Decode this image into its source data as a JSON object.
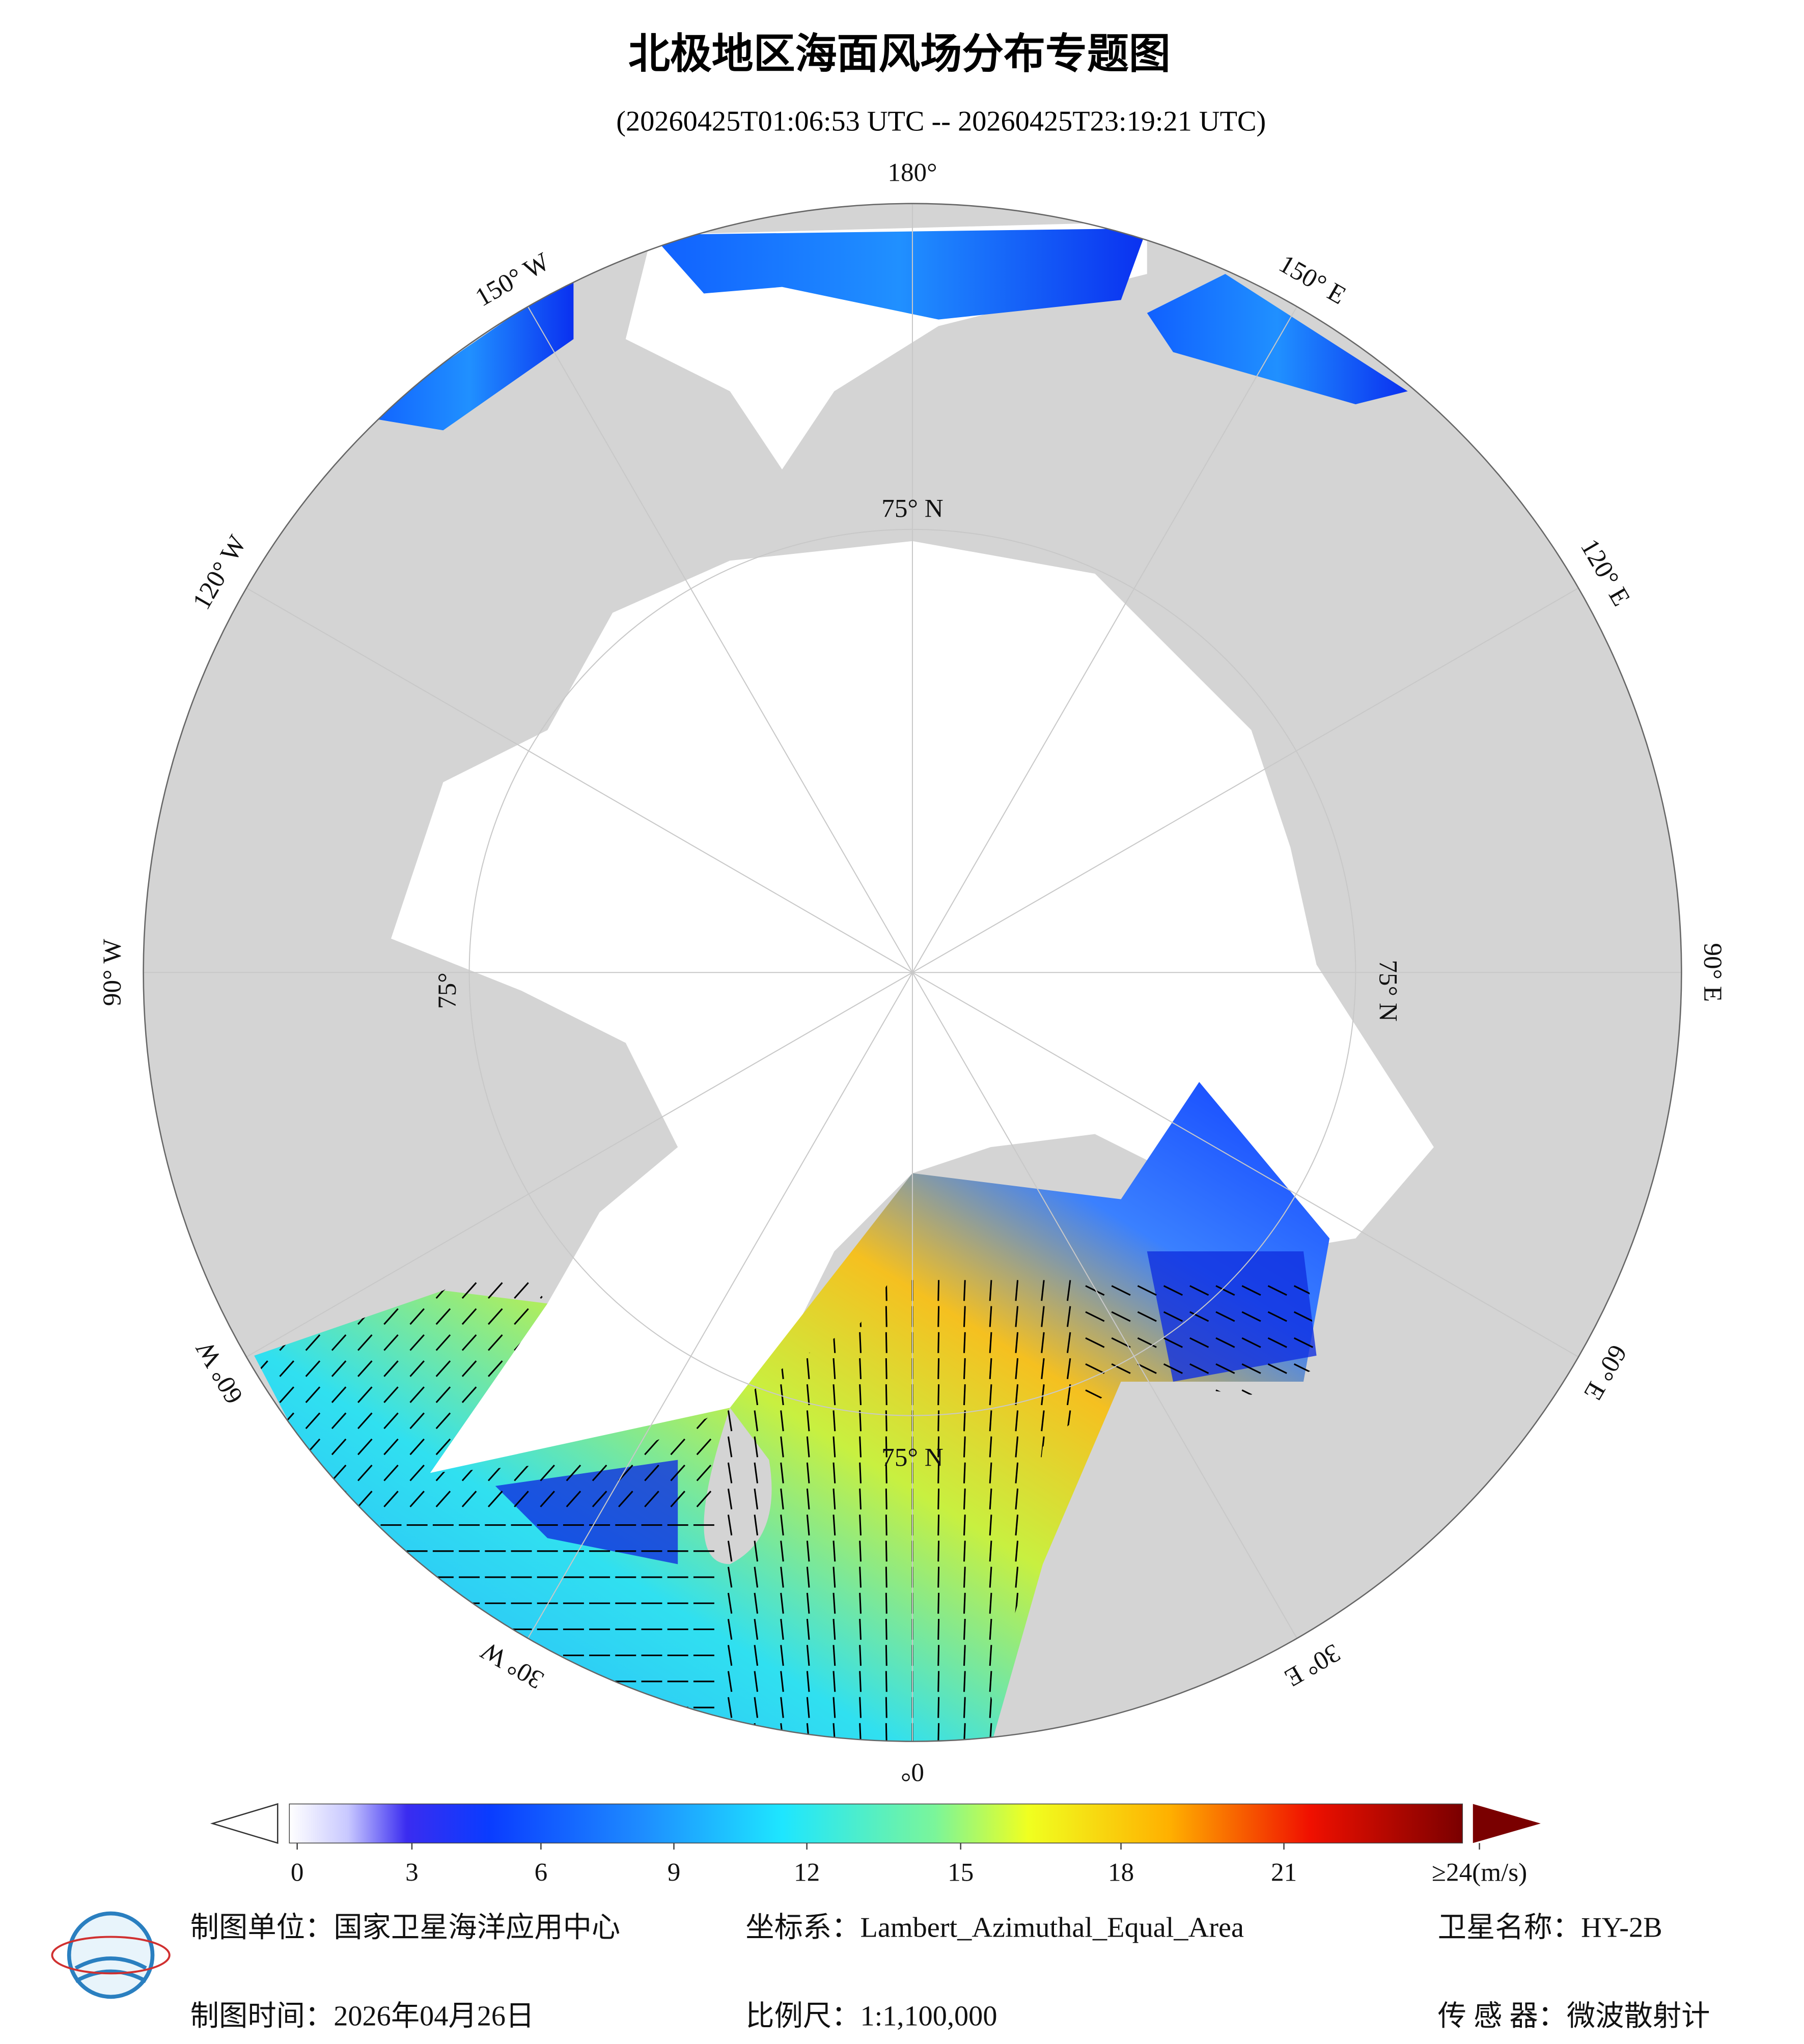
{
  "header": {
    "title": "北极地区海面风场分布专题图",
    "subtitle": "(20260425T01:06:53 UTC -- 20260425T23:19:21 UTC)"
  },
  "map": {
    "longitude_labels": [
      "180°",
      "150° E",
      "120° E",
      "90° E",
      "60° E",
      "30° E",
      "0°",
      "30° W",
      "60° W",
      "90° W",
      "120° W",
      "150° W"
    ],
    "latitude_labels": [
      "75° N",
      "75° N",
      "75°",
      "75° N"
    ]
  },
  "colorbar": {
    "ticks": [
      0,
      3,
      6,
      9,
      12,
      15,
      18,
      21,
      {
        "value": 24,
        "label": "≥24(m/s)"
      }
    ]
  },
  "footer": {
    "unit": "制图单位：国家卫星海洋应用中心",
    "crs": "坐标系：Lambert_Azimuthal_Equal_Area",
    "satellite": "卫星名称：HY-2B",
    "date": "制图时间：2026年04月26日",
    "scale": "比例尺：1:1,100,000",
    "sensor": "传 感 器：微波散射计"
  }
}
